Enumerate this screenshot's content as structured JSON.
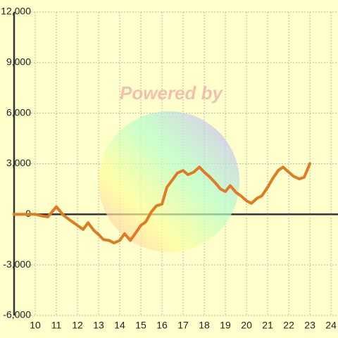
{
  "chart_data": {
    "type": "line",
    "watermark": "Powered by",
    "x": [
      9,
      10,
      10.33,
      10.6,
      11,
      11.33,
      11.67,
      12,
      12.27,
      12.5,
      12.77,
      13,
      13.23,
      13.5,
      13.73,
      14,
      14.23,
      14.5,
      14.73,
      15,
      15.23,
      15.5,
      15.73,
      16,
      16.23,
      16.5,
      16.73,
      17,
      17.23,
      17.5,
      17.77,
      18,
      18.23,
      18.5,
      18.77,
      19,
      19.23,
      19.5,
      19.73,
      20,
      20.23,
      20.5,
      20.73,
      21,
      21.23,
      21.5,
      21.73,
      22,
      22.23,
      22.5,
      22.73,
      23
    ],
    "series": [
      {
        "color": "#e07b24",
        "values": [
          0,
          0,
          -100,
          -150,
          450,
          -50,
          -370,
          -660,
          -900,
          -500,
          -950,
          -1200,
          -1500,
          -1550,
          -1700,
          -1550,
          -1150,
          -1550,
          -1150,
          -660,
          -450,
          150,
          500,
          600,
          1600,
          2050,
          2450,
          2600,
          2350,
          2500,
          2800,
          2500,
          2250,
          1900,
          1500,
          1350,
          1700,
          1300,
          1100,
          800,
          650,
          950,
          1100,
          1600,
          2100,
          2600,
          2800,
          2500,
          2250,
          2100,
          2200,
          3000
        ]
      }
    ],
    "xlim": [
      9,
      24.33
    ],
    "xticks": [
      10,
      11,
      12,
      13,
      14,
      15,
      16,
      17,
      18,
      19,
      20,
      21,
      22,
      23,
      24
    ],
    "ylim": [
      -6000,
      12000
    ],
    "yticks": [
      {
        "value": 12000,
        "label": "12,000"
      },
      {
        "value": 9000,
        "label": "9,000"
      },
      {
        "value": 6000,
        "label": "6,000"
      },
      {
        "value": 3000,
        "label": "3,000"
      },
      0,
      {
        "value": -3000,
        "label": "-3,000"
      },
      {
        "value": -6000,
        "label": "-6,000"
      }
    ],
    "grid": true
  }
}
